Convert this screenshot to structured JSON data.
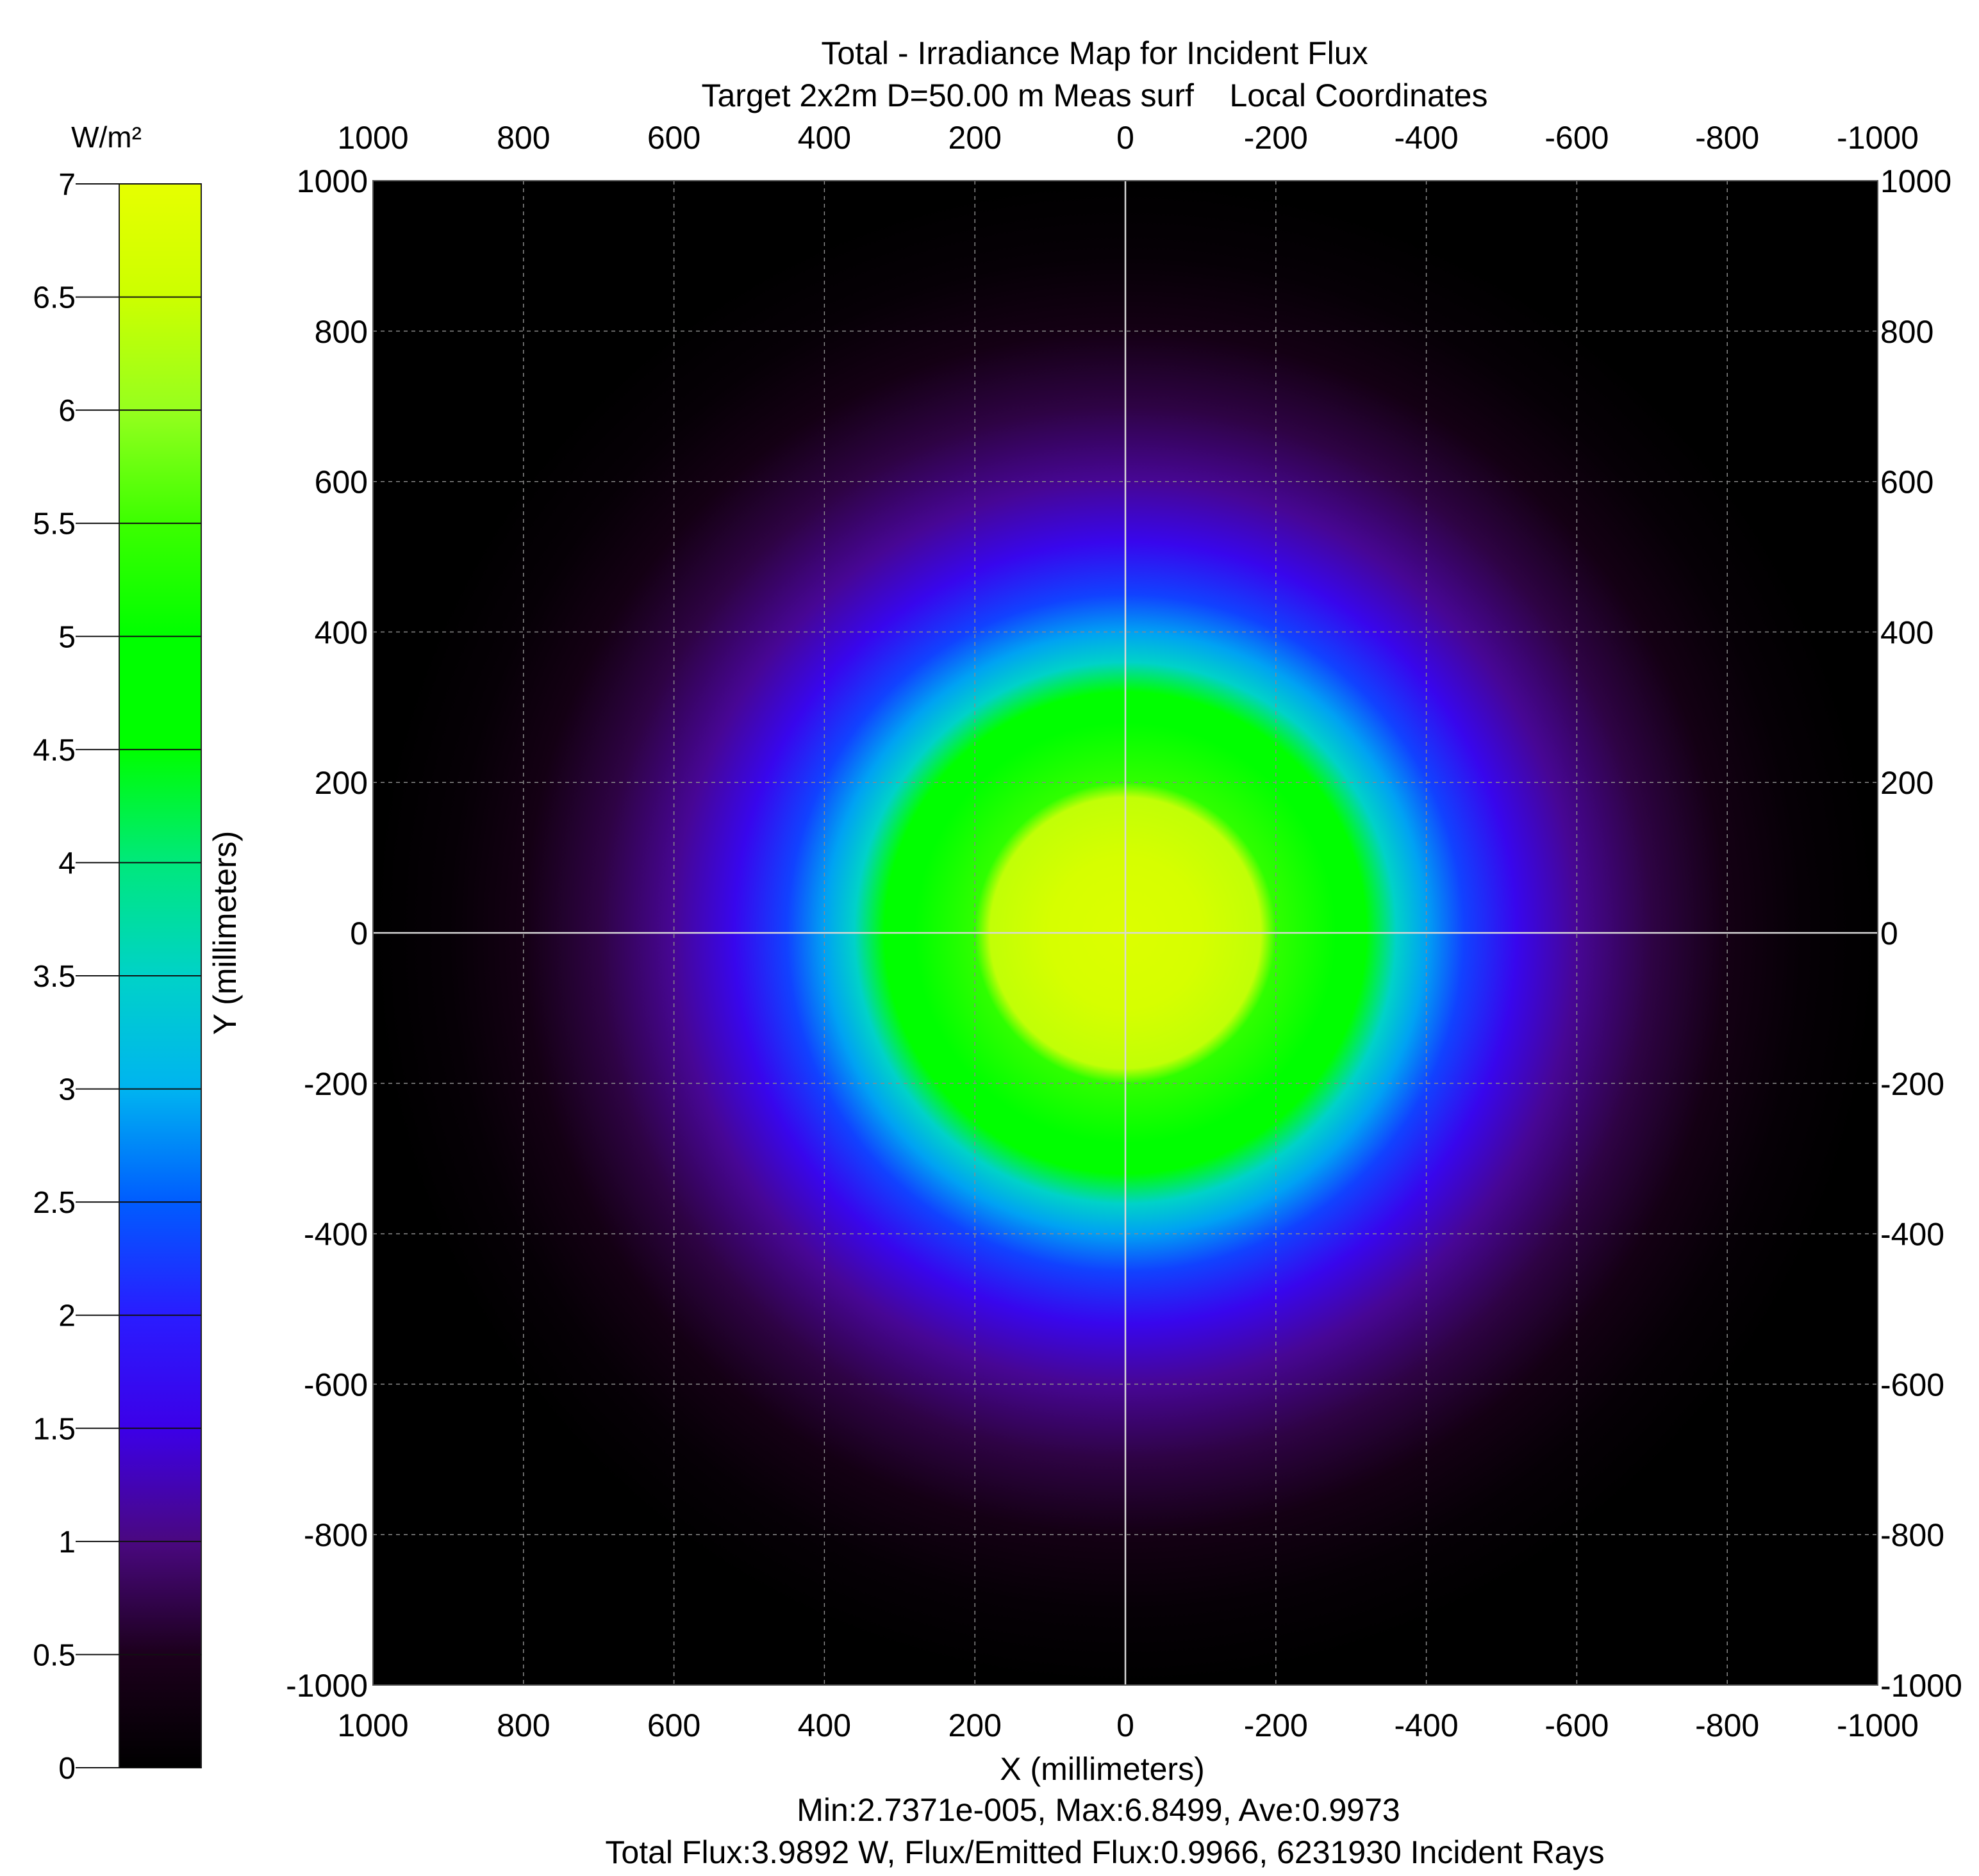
{
  "chart_data": {
    "type": "heatmap",
    "title": "Total - Irradiance Map for Incident Flux",
    "subtitle": "Target 2x2m D=50.00 m Meas surf    Local Coordinates",
    "xlabel": "X (millimeters)",
    "ylabel": "Y (millimeters)",
    "xlim": [
      1000,
      -1000
    ],
    "ylim": [
      -1000,
      1000
    ],
    "x_ticks": [
      "1000",
      "800",
      "600",
      "400",
      "200",
      "0",
      "-200",
      "-400",
      "-600",
      "-800",
      "-1000"
    ],
    "y_ticks": [
      "1000",
      "800",
      "600",
      "400",
      "200",
      "0",
      "-200",
      "-400",
      "-600",
      "-800",
      "-1000"
    ],
    "x_tick_values": [
      1000,
      800,
      600,
      400,
      200,
      0,
      -200,
      -400,
      -600,
      -800,
      -1000
    ],
    "y_tick_values": [
      1000,
      800,
      600,
      400,
      200,
      0,
      -200,
      -400,
      -600,
      -800,
      -1000
    ],
    "grid": true,
    "colorbar": {
      "unit": "W/m²",
      "range": [
        0,
        7
      ],
      "ticks": [
        "0",
        "0.5",
        "1",
        "1.5",
        "2",
        "2.5",
        "3",
        "3.5",
        "4",
        "4.5",
        "5",
        "5.5",
        "6",
        "6.5",
        "7"
      ],
      "tick_values": [
        0,
        0.5,
        1,
        1.5,
        2,
        2.5,
        3,
        3.5,
        4,
        4.5,
        5,
        5.5,
        6,
        6.5,
        7
      ],
      "colormap": [
        {
          "value": 0.0,
          "color": "#000000"
        },
        {
          "value": 0.5,
          "color": "#1c001c"
        },
        {
          "value": 1.0,
          "color": "#4a0880"
        },
        {
          "value": 1.5,
          "color": "#3c00e8"
        },
        {
          "value": 2.0,
          "color": "#2a1cff"
        },
        {
          "value": 2.5,
          "color": "#005cff"
        },
        {
          "value": 3.0,
          "color": "#00b4f0"
        },
        {
          "value": 3.5,
          "color": "#00d2c8"
        },
        {
          "value": 4.0,
          "color": "#00e87c"
        },
        {
          "value": 4.5,
          "color": "#00ff00"
        },
        {
          "value": 5.0,
          "color": "#00ff00"
        },
        {
          "value": 5.5,
          "color": "#3cff00"
        },
        {
          "value": 6.0,
          "color": "#96ff1e"
        },
        {
          "value": 6.5,
          "color": "#ccff00"
        },
        {
          "value": 7.0,
          "color": "#e6ff00"
        }
      ]
    },
    "distribution": {
      "shape": "radial",
      "center": [
        0,
        0
      ],
      "profile": [
        {
          "r": 0,
          "value": 6.8
        },
        {
          "r": 100,
          "value": 6.7
        },
        {
          "r": 180,
          "value": 6.4
        },
        {
          "r": 200,
          "value": 5.4
        },
        {
          "r": 280,
          "value": 5.0
        },
        {
          "r": 320,
          "value": 4.6
        },
        {
          "r": 360,
          "value": 3.5
        },
        {
          "r": 400,
          "value": 2.9
        },
        {
          "r": 450,
          "value": 2.3
        },
        {
          "r": 520,
          "value": 1.6
        },
        {
          "r": 600,
          "value": 1.1
        },
        {
          "r": 700,
          "value": 0.7
        },
        {
          "r": 800,
          "value": 0.35
        },
        {
          "r": 900,
          "value": 0.1
        },
        {
          "r": 1000,
          "value": 0.0
        }
      ]
    },
    "stats_line1": "Min:2.7371e-005, Max:6.8499, Ave:0.9973",
    "stats_line2": "Total Flux:3.9892 W, Flux/Emitted Flux:0.9966, 6231930 Incident Rays",
    "stats": {
      "min": 2.7371e-05,
      "max": 6.8499,
      "ave": 0.9973,
      "total_flux_w": 3.9892,
      "flux_ratio": 0.9966,
      "incident_rays": 6231930
    }
  }
}
